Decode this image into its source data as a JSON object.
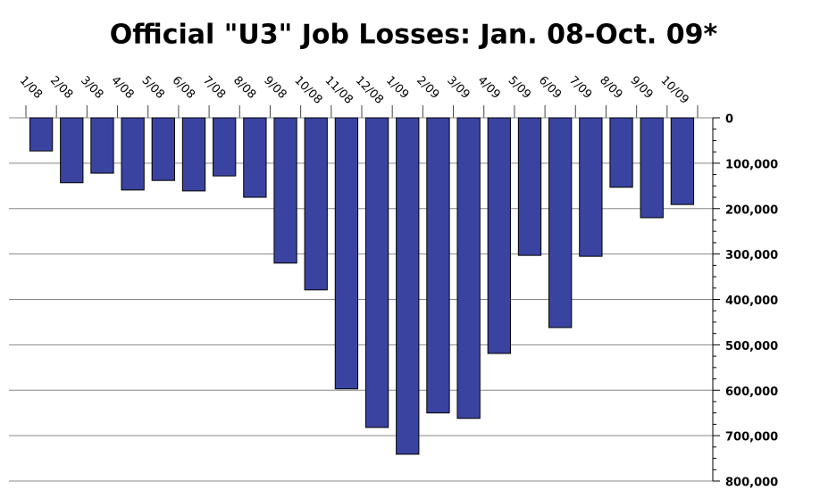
{
  "chart_data": {
    "type": "bar",
    "title": "Official \"U3\" Job Losses: Jan. 08-Oct. 09*",
    "categories": [
      "1/08",
      "2/08",
      "3/08",
      "4/08",
      "5/08",
      "6/08",
      "7/08",
      "8/08",
      "9/08",
      "10/08",
      "11/08",
      "12/08",
      "1/09",
      "2/09",
      "3/09",
      "4/09",
      "5/09",
      "6/09",
      "7/09",
      "8/09",
      "9/09",
      "10/09"
    ],
    "values": [
      73000,
      143000,
      122000,
      159000,
      138000,
      161000,
      128000,
      175000,
      320000,
      379000,
      597000,
      682000,
      741000,
      650000,
      662000,
      519000,
      303000,
      462000,
      305000,
      153000,
      220000,
      191000
    ],
    "color": "#3a44a0",
    "ylim": [
      0,
      800000
    ],
    "yticks": [
      0,
      {
        "value": 100000,
        "label": "100,000"
      },
      {
        "value": 200000,
        "label": "200,000"
      },
      {
        "value": 300000,
        "label": "300,000"
      },
      {
        "value": 400000,
        "label": "400,000"
      },
      {
        "value": 500000,
        "label": "500,000"
      },
      {
        "value": 600000,
        "label": "600,000"
      },
      {
        "value": 700000,
        "label": "700,000"
      },
      {
        "value": 800000,
        "label": "800,000"
      }
    ],
    "grid": true,
    "inverted": true
  }
}
